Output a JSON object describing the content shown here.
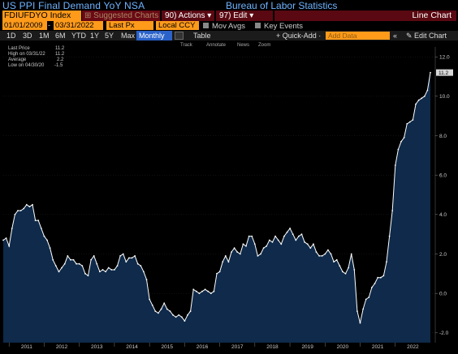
{
  "header": {
    "title": "US PPI Final Demand YoY NSA",
    "source": "Bureau of Labor Statistics"
  },
  "toolbar": {
    "ticker": "FDIUFDYO Index",
    "suggested": "⊞ Suggested Charts",
    "actions": "90) Actions ▾",
    "edit": "97) Edit ▾",
    "chart_type": "Line Chart"
  },
  "range": {
    "start": "01/01/2009",
    "end": "03/31/2022",
    "field": "Last Px",
    "currency": "Local CCY",
    "mov_avgs": "Mov Avgs",
    "key_events": "Key Events"
  },
  "periods": [
    "1D",
    "3D",
    "1M",
    "6M",
    "YTD",
    "1Y",
    "5Y",
    "Max"
  ],
  "frequency": "Monthly ▼",
  "table_label": "Table",
  "quick_add": "+ Quick-Add ·",
  "add_data_placeholder": "Add Data",
  "edit_chart": "✎ Edit Chart",
  "nav_arrows": "«",
  "chart_tools": [
    "Track",
    "Annotate",
    "News",
    "Zoom"
  ],
  "legend": {
    "rows": [
      {
        "label": "Last Price",
        "value": "11.2"
      },
      {
        "label": "High on 03/31/22",
        "value": "11.2"
      },
      {
        "label": "Average",
        "value": "2.2"
      },
      {
        "label": "Low on 04/30/20",
        "value": "-1.5"
      }
    ]
  },
  "colors": {
    "line": "#ffffff",
    "fill": "#0f2a4a",
    "accent": "#ff9a1a",
    "title": "#6fb3ff",
    "last_badge": "#d8d8d8"
  },
  "chart_data": {
    "type": "area",
    "x_labels": [
      "2011",
      "2012",
      "2013",
      "2014",
      "2015",
      "2016",
      "2017",
      "2018",
      "2019",
      "2020",
      "2021",
      "2022"
    ],
    "y_ticks": [
      "12.0",
      "10.0",
      "8.0",
      "6.0",
      "4.0",
      "2.0",
      "0.0",
      "-2.0"
    ],
    "ylim": [
      -2.5,
      12.5
    ],
    "last_value_label": "11.2",
    "start_month": "2010-11",
    "values": [
      2.7,
      2.8,
      2.4,
      3.3,
      4.0,
      4.2,
      4.2,
      4.3,
      4.5,
      4.4,
      4.5,
      3.7,
      3.7,
      3.3,
      2.9,
      2.7,
      2.3,
      1.7,
      1.4,
      1.1,
      1.3,
      1.5,
      1.9,
      1.7,
      1.7,
      1.5,
      1.5,
      1.4,
      1.0,
      0.9,
      1.7,
      1.9,
      1.5,
      1.1,
      1.2,
      1.1,
      1.3,
      1.2,
      1.2,
      1.4,
      1.9,
      2.0,
      1.6,
      1.8,
      1.8,
      1.9,
      1.5,
      1.4,
      1.1,
      0.7,
      -0.3,
      -0.6,
      -0.9,
      -1.0,
      -0.8,
      -0.5,
      -0.8,
      -0.9,
      -1.1,
      -1.2,
      -1.1,
      -1.2,
      -1.4,
      -1.1,
      -0.9,
      0.2,
      0.1,
      0.0,
      0.1,
      0.2,
      0.1,
      0.0,
      0.1,
      1.0,
      1.1,
      1.6,
      1.9,
      1.6,
      2.1,
      2.3,
      2.1,
      2.0,
      2.5,
      2.4,
      2.9,
      2.9,
      2.5,
      1.9,
      2.0,
      2.3,
      2.4,
      2.7,
      2.6,
      2.9,
      2.7,
      2.5,
      2.9,
      3.1,
      3.3,
      3.0,
      2.7,
      2.9,
      3.0,
      2.6,
      2.5,
      2.3,
      2.5,
      2.1,
      1.9,
      1.9,
      2.0,
      2.2,
      2.0,
      1.6,
      1.7,
      1.4,
      1.1,
      1.0,
      1.3,
      2.0,
      1.2,
      -0.9,
      -1.5,
      -0.8,
      -0.3,
      -0.2,
      0.3,
      0.5,
      0.8,
      0.8,
      0.9,
      1.6,
      2.9,
      4.2,
      6.5,
      7.3,
      7.7,
      7.9,
      8.6,
      8.7,
      8.8,
      9.6,
      9.8,
      9.9,
      10.0,
      10.3,
      11.2
    ]
  }
}
